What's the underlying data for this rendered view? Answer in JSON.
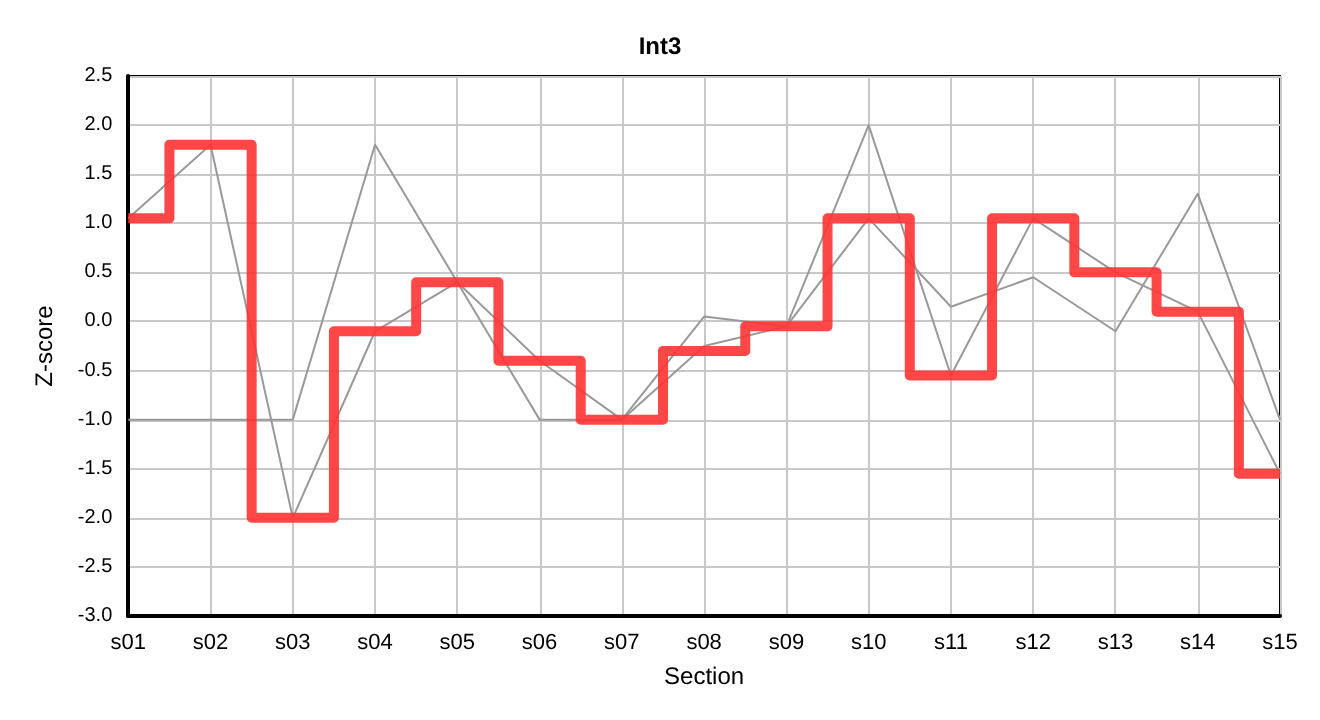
{
  "chart_data": {
    "type": "line",
    "title": "Int3",
    "xlabel": "Section",
    "ylabel": "Z-score",
    "categories": [
      "s01",
      "s02",
      "s03",
      "s04",
      "s05",
      "s06",
      "s07",
      "s08",
      "s09",
      "s10",
      "s11",
      "s12",
      "s13",
      "s14",
      "s15"
    ],
    "series": [
      {
        "color": "#999999",
        "values": [
          1.05,
          1.8,
          -2.0,
          -0.1,
          0.4,
          -0.4,
          -1.0,
          -0.25,
          -0.05,
          2.0,
          -0.55,
          1.05,
          0.5,
          0.1,
          -1.55
        ]
      },
      {
        "color": "#999999",
        "values": [
          -1.0,
          -1.0,
          -1.0,
          1.8,
          0.4,
          -1.0,
          -1.0,
          0.05,
          -0.05,
          1.05,
          0.15,
          0.45,
          -0.1,
          1.3,
          -1.0
        ]
      },
      {
        "type": "step",
        "color": "#ff3333",
        "values": [
          1.05,
          1.8,
          -2.0,
          -0.1,
          0.4,
          -0.4,
          -1.0,
          -0.3,
          -0.05,
          1.05,
          -0.55,
          1.05,
          0.5,
          0.1,
          -1.55
        ]
      }
    ],
    "ylim": [
      -3.0,
      2.5
    ],
    "yticks": [
      2.5,
      {
        "value": 2,
        "label": "2.0"
      },
      1.5,
      {
        "value": 1,
        "label": "1.0"
      },
      0.5,
      {
        "value": 0,
        "label": "0.0"
      },
      -0.5,
      {
        "value": -1,
        "label": "-1.0"
      },
      -1.5,
      {
        "value": -2,
        "label": "-2.0"
      },
      -2.5,
      {
        "value": -3,
        "label": "-3.0"
      }
    ],
    "grid": true,
    "marker": "none"
  }
}
